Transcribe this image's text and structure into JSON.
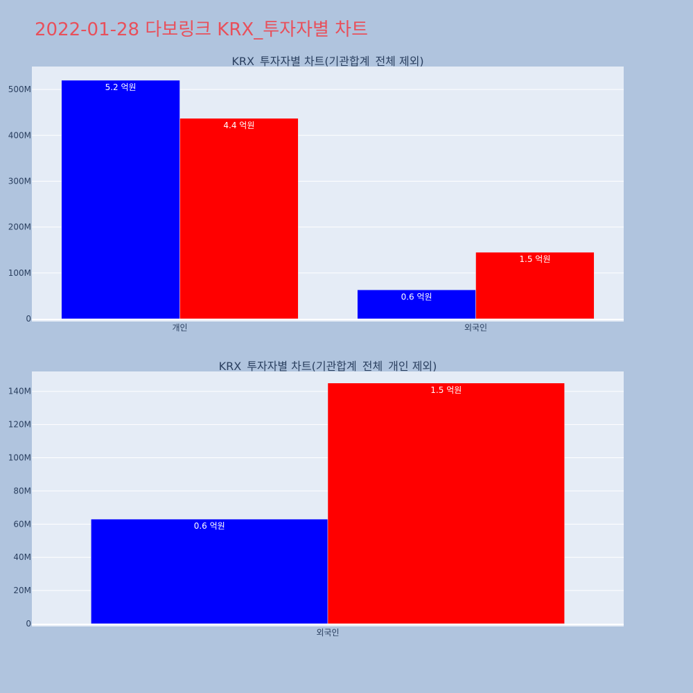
{
  "page": {
    "title": "2022-01-28 다보링크 KRX_투자자별 차트",
    "title_color": "#e8505b",
    "background": "#b0c4de",
    "plot_background": "#e5ecf6"
  },
  "chart_data": [
    {
      "type": "bar",
      "title": "KRX_투자자별 차트(기관합계_전체 제외)",
      "categories": [
        "개인",
        "외국인"
      ],
      "series": [
        {
          "color": "#0000ff",
          "values": [
            520000000,
            63000000
          ],
          "labels": [
            "5.2 억원",
            "0.6 억원"
          ]
        },
        {
          "color": "#ff0000",
          "values": [
            437000000,
            145000000
          ],
          "labels": [
            "4.4 억원",
            "1.5 억원"
          ]
        }
      ],
      "ylim": [
        0,
        550000000
      ],
      "yticks": [
        0,
        100000000,
        200000000,
        300000000,
        400000000,
        500000000
      ],
      "ytick_labels": [
        "0",
        "100M",
        "200M",
        "300M",
        "400M",
        "500M"
      ],
      "grid": true,
      "xlabel": "",
      "ylabel": ""
    },
    {
      "type": "bar",
      "title": "KRX_투자자별 차트(기관합계_전체_개인 제외)",
      "categories": [
        "외국인"
      ],
      "series": [
        {
          "color": "#0000ff",
          "values": [
            63000000
          ],
          "labels": [
            "0.6 억원"
          ]
        },
        {
          "color": "#ff0000",
          "values": [
            145000000
          ],
          "labels": [
            "1.5 억원"
          ]
        }
      ],
      "ylim": [
        0,
        152000000
      ],
      "yticks": [
        0,
        20000000,
        40000000,
        60000000,
        80000000,
        100000000,
        120000000,
        140000000
      ],
      "ytick_labels": [
        "0",
        "20M",
        "40M",
        "60M",
        "80M",
        "100M",
        "120M",
        "140M"
      ],
      "grid": true,
      "xlabel": "",
      "ylabel": ""
    }
  ]
}
